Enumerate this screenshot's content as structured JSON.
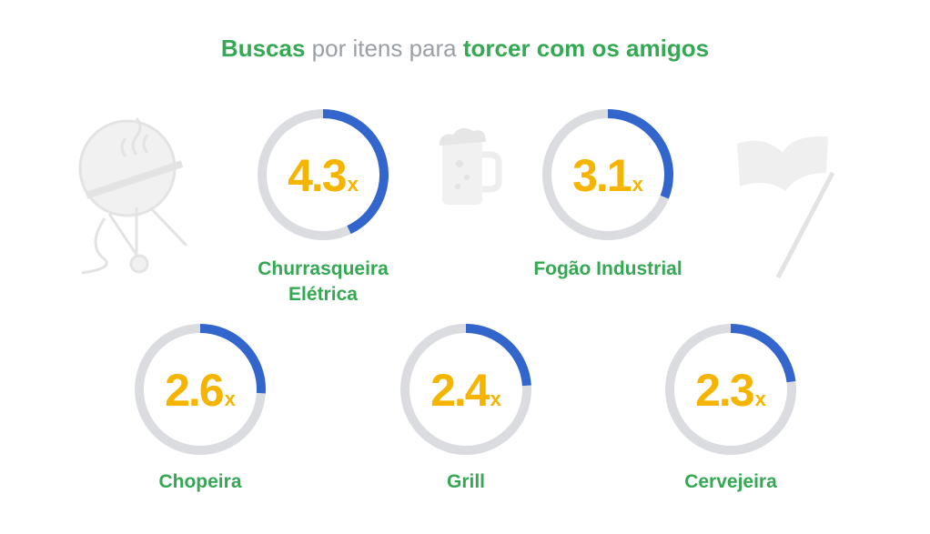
{
  "chart_data": {
    "type": "ring",
    "title_parts": [
      "Buscas",
      " por itens para ",
      "torcer com os amigos"
    ],
    "title_colors": [
      "#34a853",
      "#9aa0a6",
      "#34a853"
    ],
    "categories": [
      "Churrasqueira Elétrica",
      "Fogão Industrial",
      "Chopeira",
      "Grill",
      "Cervejeira"
    ],
    "values": [
      4.3,
      3.1,
      2.6,
      2.4,
      2.3
    ],
    "unit": "x",
    "scale_max": 10,
    "color": "#3366cc",
    "track_color": "#dadce0",
    "number_color": "#f4b400",
    "label_color": "#34a853"
  }
}
